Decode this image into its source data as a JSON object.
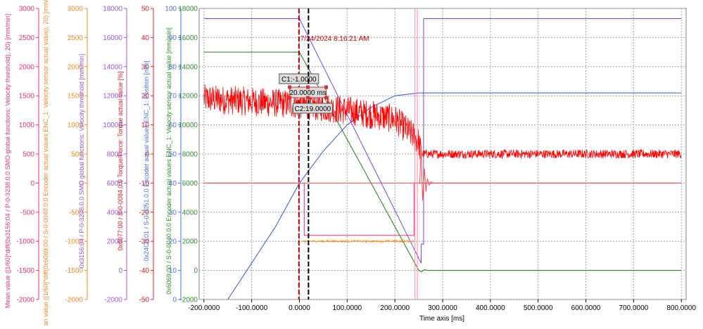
{
  "chart_data": {
    "type": "line",
    "title": "",
    "xlabel": "Time axis [ms]",
    "x_ticks": [
      -200,
      -100,
      0,
      100,
      200,
      300,
      400,
      500,
      600,
      700,
      800
    ],
    "x_tick_labels": [
      "-200.0000",
      "-100.0000",
      "0.0000",
      "100.0000",
      "200.0000",
      "300.0000",
      "400.0000",
      "500.0000",
      "600.0000",
      "700.0000",
      "800.0000"
    ],
    "xlim": [
      -210,
      810
    ],
    "grid": true,
    "axes": [
      {
        "id": "a1",
        "color": "#e8336e",
        "range": [
          -2000,
          3000
        ],
        "step": 500,
        "label": "Mean value ([1/60]*diff(0x3156:04 / P-0-3238.0.0 SMO global functions: Velocity threshold), 20) [mm/min]"
      },
      {
        "id": "a2",
        "color": "#f08a24",
        "range": [
          -2000,
          3000
        ],
        "step": 500,
        "label": "Mean value ([1/60]*diff(0x6069:00 / S-0-0040.0.0 Encoder actual values ENC_1: Velocity sensor actual value), 20) [mm/min]"
      },
      {
        "id": "a3",
        "color": "#9a55d8",
        "range": [
          -2000,
          18000
        ],
        "step": 2000,
        "label": "0x3156:04 / P-0-3238.0.0 SMO global functions: Velocity threshold [mm/min]"
      },
      {
        "id": "a4",
        "color": "#e11d1d",
        "range": [
          -50,
          50
        ],
        "step": 10,
        "label": "0x6077:00 / S-0-0084.0.0 Torque/Force: Torque actual value [%]"
      },
      {
        "id": "a5",
        "color": "#4a6fe0",
        "range": [
          0,
          100
        ],
        "step": 10,
        "label": "0x24C0:01 / S-0-0051.0.0 Encoder actual values ENC_1: Position [mm]"
      },
      {
        "id": "a6",
        "color": "#2d8a2d",
        "range": [
          -2000,
          18000
        ],
        "step": 2000,
        "label": "0x6069:00 / S-0-0040.0.0 Encoder actual values ENC_1: Velocity sensor actual value [mm/min]"
      }
    ],
    "series": [
      {
        "axis": "a6",
        "color": "#1e7a1e",
        "x": [
          -200,
          0,
          250,
          256,
          262,
          270,
          800
        ],
        "values": [
          15000,
          15000,
          0,
          -100,
          50,
          0,
          0
        ]
      },
      {
        "axis": "a3",
        "color": "#6a49e0",
        "x": [
          -200,
          0,
          255,
          255,
          260,
          260,
          800
        ],
        "values": [
          17300,
          17300,
          500,
          1800,
          1800,
          17300,
          17300
        ]
      },
      {
        "axis": "a5",
        "color": "#3353d6",
        "x": [
          -150,
          -50,
          0,
          50,
          100,
          150,
          200,
          250,
          800
        ],
        "values": [
          0,
          25,
          40,
          51,
          60,
          66,
          70,
          71,
          71
        ]
      },
      {
        "axis": "a4",
        "color": "#ff0000",
        "noise": 10,
        "x": [
          -200,
          0,
          100,
          200,
          240,
          250,
          255,
          800
        ],
        "values": [
          19,
          17,
          15,
          12,
          6,
          4,
          0,
          0
        ]
      },
      {
        "axis": "a2",
        "color": "#f08a24",
        "noise": 30,
        "x": [
          5,
          240
        ],
        "values": [
          -1000,
          -1000
        ]
      },
      {
        "axis": "a1",
        "color": "#e8336e",
        "x": [
          -200,
          0,
          10,
          10,
          240,
          240,
          800
        ],
        "values": [
          0,
          0,
          0,
          -900,
          -900,
          0,
          0
        ]
      },
      {
        "axis": "a1",
        "color": "#ff4a4a",
        "x": [
          -200,
          245,
          250,
          252,
          255,
          258,
          262,
          265,
          268,
          272,
          276,
          280,
          800
        ],
        "values": [
          0,
          0,
          0,
          0,
          600,
          -300,
          250,
          -150,
          80,
          -40,
          20,
          0,
          0
        ]
      }
    ],
    "cursor_lines": [
      {
        "x": -1,
        "label": "C1:-1.0000",
        "color": "#b00000"
      },
      {
        "x": 19,
        "label": "C2:19.0000",
        "color": "#000000"
      }
    ],
    "delta_label": "20.0000 ms",
    "annotation": "7/24/2024 8:16:21 AM",
    "pink_vertical_lines": [
      242,
      247
    ]
  }
}
